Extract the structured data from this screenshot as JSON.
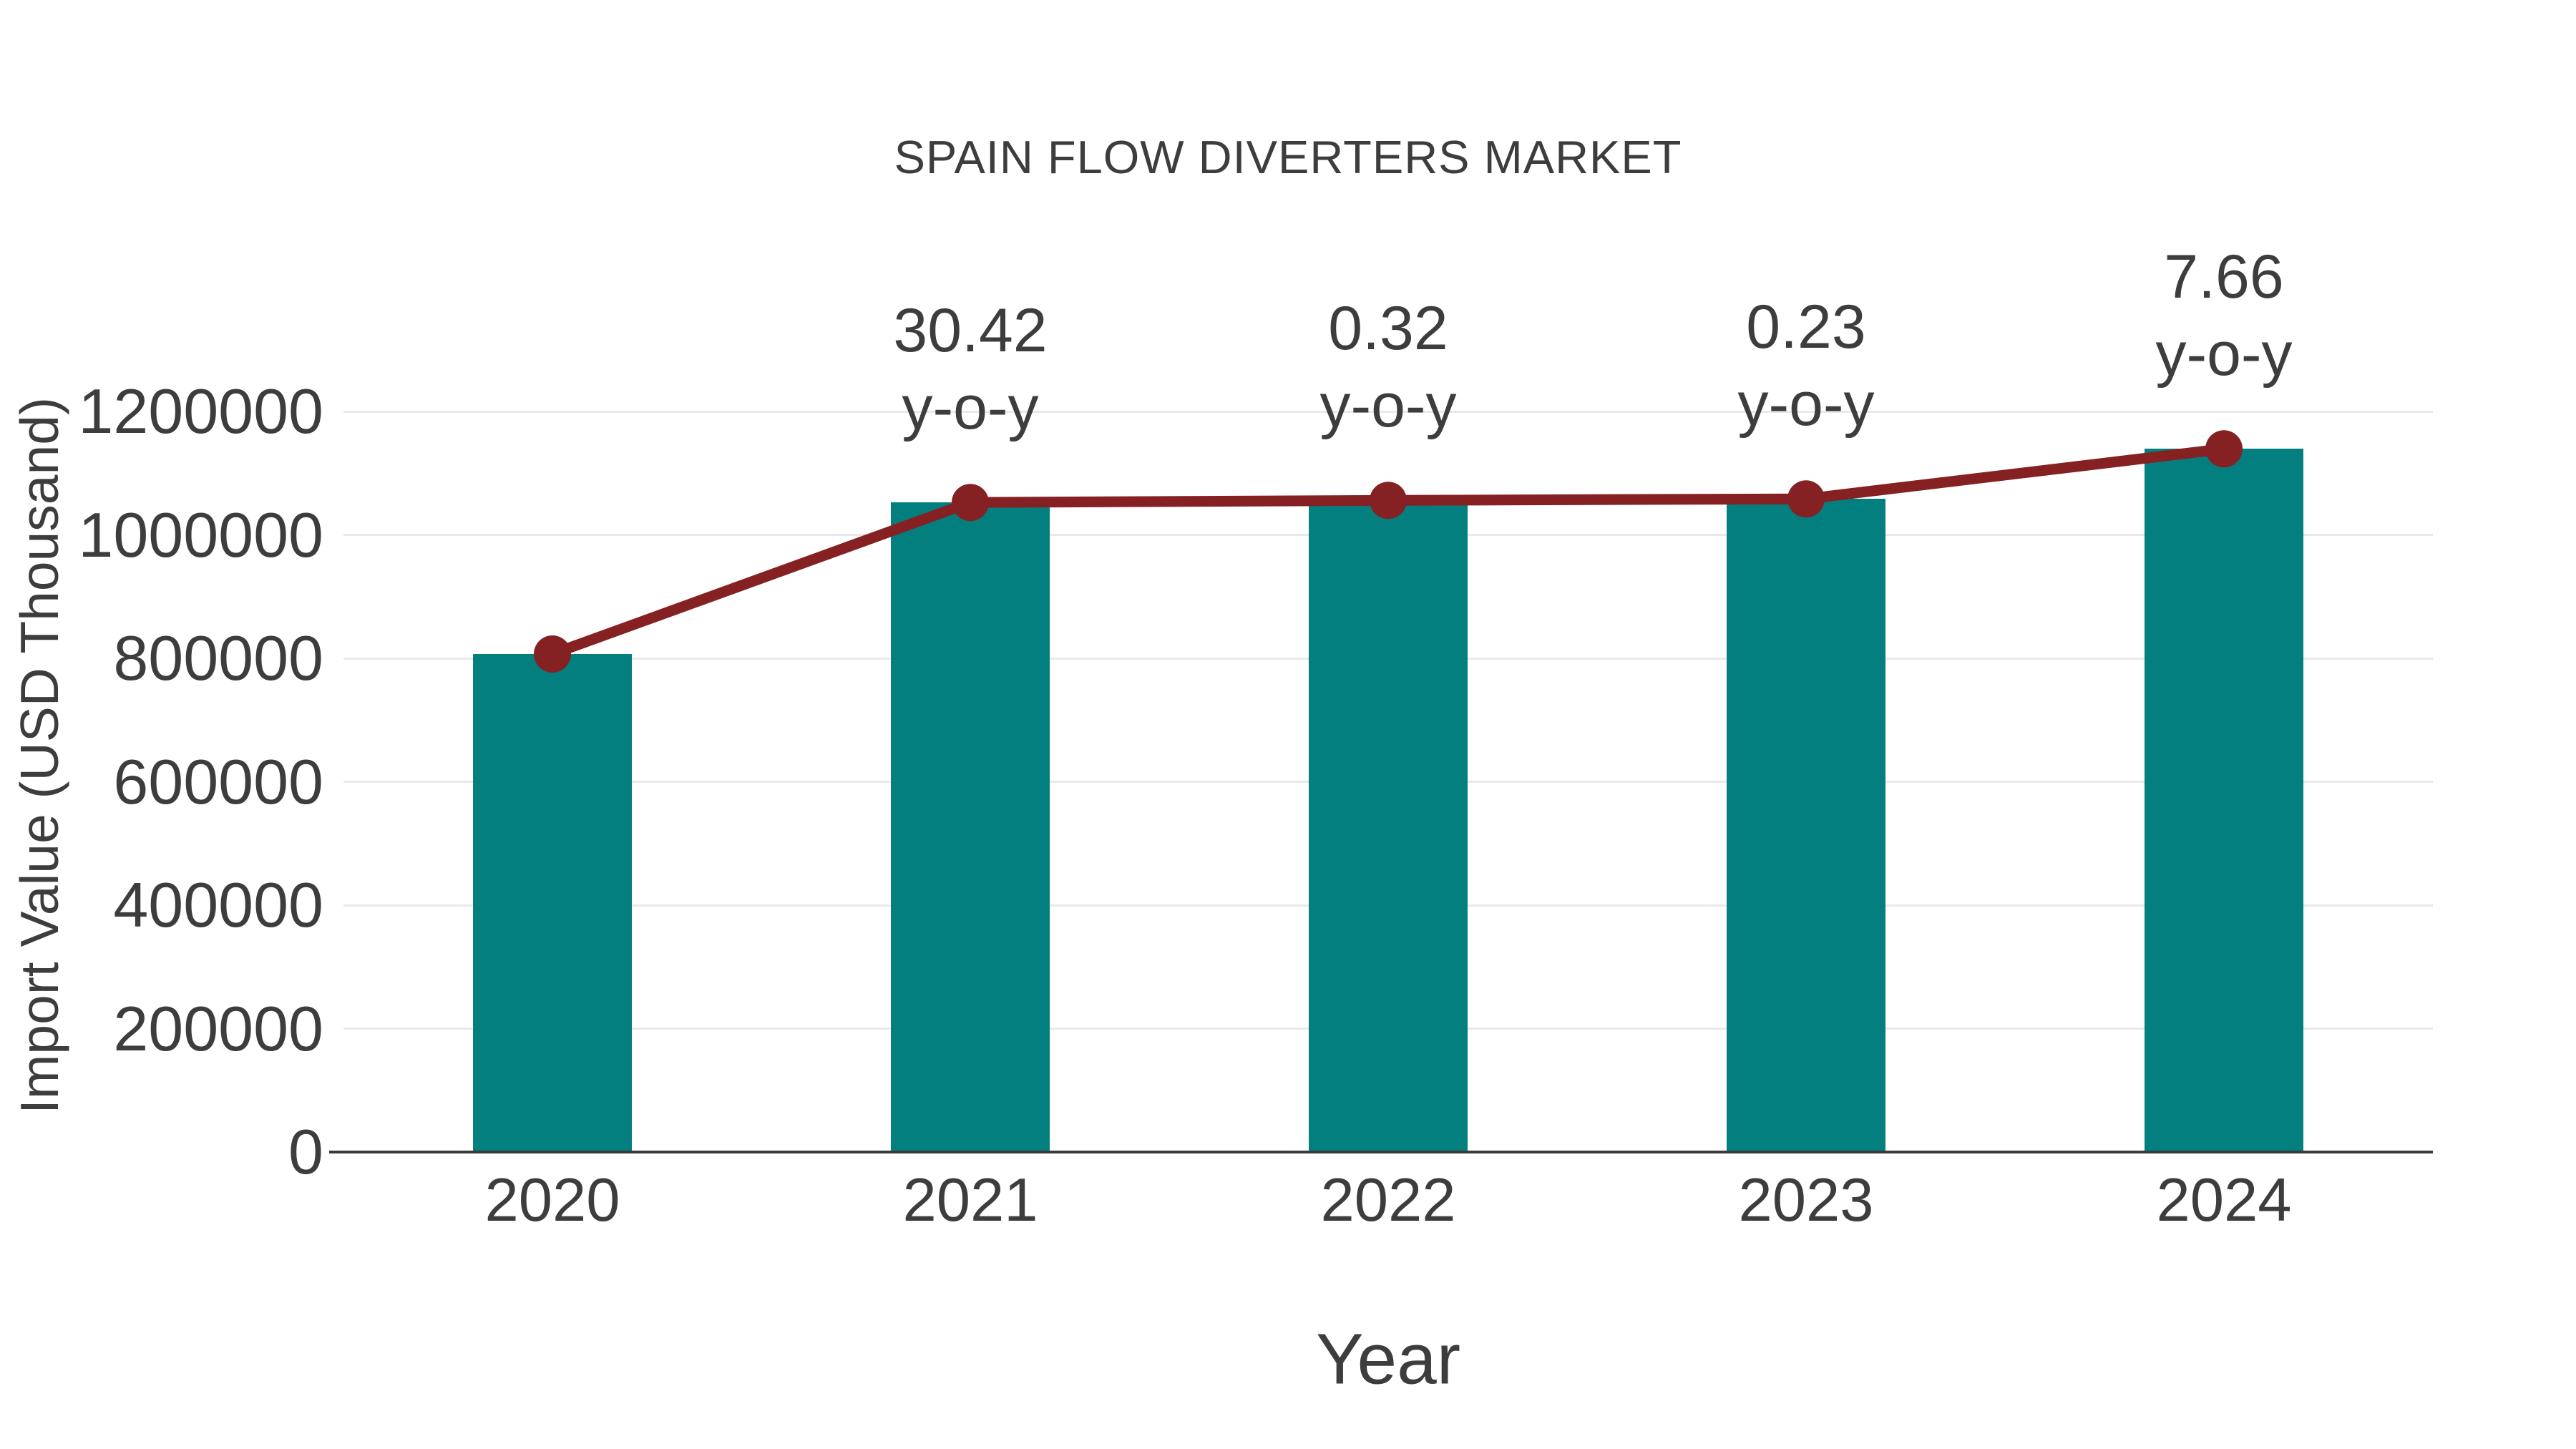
{
  "page": {
    "background": "#ffffff"
  },
  "colors": {
    "text": "#3d3d3d",
    "grid": "#e9e9e9",
    "axis": "#3a3a3a",
    "bar": "#047f7f",
    "line": "#852123"
  },
  "chart_data": {
    "type": "bar",
    "title": "SPAIN FLOW DIVERTERS MARKET",
    "xlabel": "Year",
    "ylabel": "Import Value (USD Thousand)",
    "categories": [
      "2020",
      "2021",
      "2022",
      "2023",
      "2024"
    ],
    "series": [
      {
        "name": "Import Value bars",
        "type": "bar",
        "color": "#047f7f",
        "values": [
          807000,
          1052500,
          1055900,
          1058300,
          1139400
        ]
      },
      {
        "name": "Import Value trend line",
        "type": "line",
        "color": "#852123",
        "values": [
          807000,
          1052500,
          1055900,
          1058300,
          1139400
        ]
      }
    ],
    "annotations": [
      {
        "category": "2021",
        "value_label": "30.42",
        "suffix_label": "y-o-y"
      },
      {
        "category": "2022",
        "value_label": "0.32",
        "suffix_label": "y-o-y"
      },
      {
        "category": "2023",
        "value_label": "0.23",
        "suffix_label": "y-o-y"
      },
      {
        "category": "2024",
        "value_label": "7.66",
        "suffix_label": "y-o-y"
      }
    ],
    "ylim": [
      0,
      1200000
    ],
    "yticks": [
      {
        "value": 0,
        "label": "0"
      },
      {
        "value": 200000,
        "label": "200000"
      },
      {
        "value": 400000,
        "label": "400000"
      },
      {
        "value": 600000,
        "label": "600000"
      },
      {
        "value": 800000,
        "label": "800000"
      },
      {
        "value": 1000000,
        "label": "1000000"
      },
      {
        "value": 1200000,
        "label": "1200000"
      }
    ],
    "grid": "horizontal",
    "legend": "none"
  }
}
